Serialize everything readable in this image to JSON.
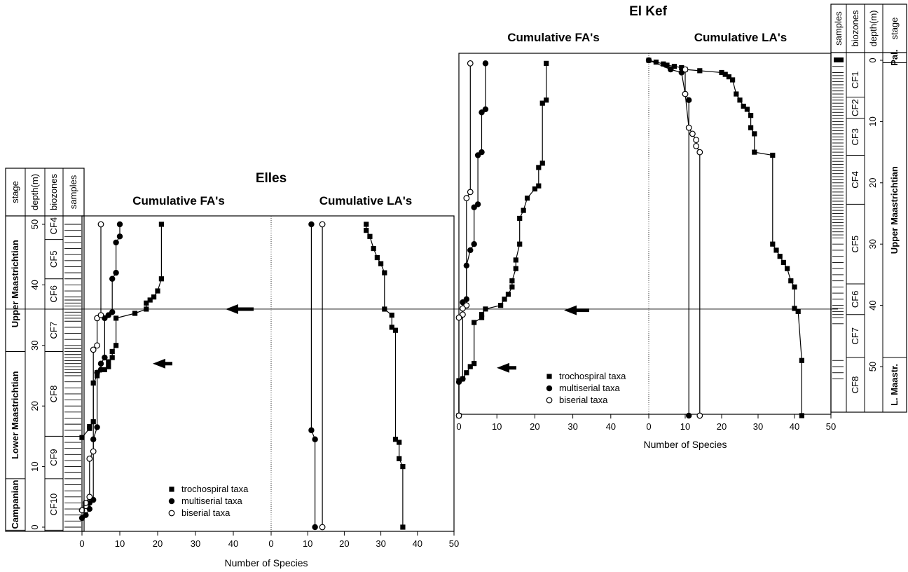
{
  "chart_data": [
    {
      "type": "scatter",
      "section": "Elles",
      "panels": [
        "Cumulative FA's",
        "Cumulative LA's"
      ],
      "xlabel": "Number of Species",
      "xlim": [
        0,
        50
      ],
      "xticks": [
        0,
        10,
        20,
        30,
        40,
        50
      ],
      "depth_label": "depth(m)",
      "depth_ticks": [
        0,
        10,
        20,
        30,
        40,
        50
      ],
      "boundary_depth": 36,
      "arrow_depths": [
        36,
        27
      ],
      "legend": [
        "trochospiral taxa",
        "multiserial taxa",
        "biserial taxa"
      ],
      "columns": [
        "stage",
        "depth(m)",
        "biozones",
        "samples"
      ],
      "stages": [
        {
          "label": "Upper Maastrichtian",
          "from": 29,
          "to": 52
        },
        {
          "label": "Lower Maastrichtian",
          "from": 8,
          "to": 29
        },
        {
          "label": "Campanian",
          "from": -0.5,
          "to": 8
        }
      ],
      "biozones": [
        {
          "label": "CF4",
          "from": 47.5,
          "to": 52
        },
        {
          "label": "CF5",
          "from": 41,
          "to": 47.5
        },
        {
          "label": "CF6",
          "from": 36,
          "to": 41
        },
        {
          "label": "CF7",
          "from": 29,
          "to": 36
        },
        {
          "label": "CF8",
          "from": 15,
          "to": 29
        },
        {
          "label": "CF9",
          "from": 8,
          "to": 15
        },
        {
          "label": "CF10",
          "from": -0.5,
          "to": 8
        }
      ],
      "samples": [
        0,
        1,
        2,
        3,
        4,
        5,
        6,
        7,
        8,
        9,
        10,
        11,
        12,
        13,
        14,
        15,
        16,
        17,
        18,
        19,
        20,
        21,
        22,
        23,
        24,
        25,
        25.5,
        26,
        26.5,
        27,
        27.5,
        28,
        28.5,
        29,
        29.5,
        30,
        31,
        32,
        33,
        34,
        34.5,
        35,
        35.5,
        36,
        36.5,
        37,
        37.5,
        38,
        39,
        40,
        41,
        42,
        43,
        44,
        45,
        46,
        47,
        48,
        49,
        50
      ],
      "fa": {
        "trochospiral": [
          [
            14.8,
            0
          ],
          [
            16.3,
            2
          ],
          [
            16.6,
            2
          ],
          [
            17.4,
            3
          ],
          [
            23.8,
            3
          ],
          [
            25,
            4
          ],
          [
            25.5,
            4
          ],
          [
            26,
            6
          ],
          [
            26.5,
            7
          ],
          [
            27.3,
            7
          ],
          [
            28,
            8
          ],
          [
            29,
            8
          ],
          [
            30,
            9
          ],
          [
            34.5,
            9
          ],
          [
            35.3,
            14
          ],
          [
            36,
            17
          ],
          [
            37,
            17
          ],
          [
            37.5,
            18
          ],
          [
            38,
            19
          ],
          [
            39,
            20
          ],
          [
            41,
            21
          ],
          [
            50,
            21
          ]
        ],
        "multiserial": [
          [
            1.5,
            0
          ],
          [
            2,
            1
          ],
          [
            3,
            2
          ],
          [
            4,
            2
          ],
          [
            4.5,
            3
          ],
          [
            14.5,
            3
          ],
          [
            16.5,
            4
          ],
          [
            25.5,
            4
          ],
          [
            26,
            5
          ],
          [
            27,
            5
          ],
          [
            28,
            6
          ],
          [
            34.5,
            6
          ],
          [
            35,
            7
          ],
          [
            35.5,
            8
          ],
          [
            41,
            8
          ],
          [
            42,
            9
          ],
          [
            47,
            9
          ],
          [
            48,
            10
          ],
          [
            50,
            10
          ]
        ],
        "biserial": [
          [
            2.8,
            0
          ],
          [
            3.5,
            1
          ],
          [
            4,
            1
          ],
          [
            5,
            2
          ],
          [
            11.3,
            2
          ],
          [
            12.5,
            3
          ],
          [
            29.3,
            3
          ],
          [
            30,
            4
          ],
          [
            34.5,
            4
          ],
          [
            35,
            5
          ],
          [
            50,
            5
          ]
        ]
      },
      "la": {
        "trochospiral": [
          [
            0,
            36
          ],
          [
            10,
            36
          ],
          [
            11.3,
            35
          ],
          [
            14,
            35
          ],
          [
            14.5,
            34
          ],
          [
            32.5,
            34
          ],
          [
            33,
            33
          ],
          [
            35,
            33
          ],
          [
            36,
            31
          ],
          [
            42,
            31
          ],
          [
            43.5,
            30
          ],
          [
            44.5,
            29
          ],
          [
            46,
            28
          ],
          [
            48,
            27
          ],
          [
            49,
            26
          ],
          [
            50,
            26
          ]
        ],
        "multiserial": [
          [
            0,
            12
          ],
          [
            14.5,
            12
          ],
          [
            16,
            11
          ],
          [
            50,
            11
          ]
        ],
        "biserial": [
          [
            0,
            14
          ],
          [
            50,
            14
          ]
        ]
      }
    },
    {
      "type": "scatter",
      "section": "El Kef",
      "panels": [
        "Cumulative FA's",
        "Cumulative LA's"
      ],
      "xlabel": "Number of Species",
      "xlim": [
        0,
        50
      ],
      "xticks": [
        0,
        10,
        20,
        30,
        40,
        50
      ],
      "depth_label": "depth(m)",
      "depth_ticks": [
        0,
        10,
        20,
        30,
        40,
        50
      ],
      "boundary_depth": 40.5,
      "arrow_depths": [
        40.8,
        50.2
      ],
      "legend": [
        "trochospiral taxa",
        "multiserial taxa",
        "biserial taxa"
      ],
      "columns": [
        "samples",
        "biozones",
        "depth(m)",
        "stage"
      ],
      "stages": [
        {
          "label": "Pal.",
          "from": -1.3,
          "to": 0.4
        },
        {
          "label": "Upper Maastrichtian",
          "from": 0.4,
          "to": 48.5
        },
        {
          "label": "L. Maastr.",
          "from": 48.5,
          "to": 58
        }
      ],
      "biozones": [
        {
          "label": "CF1",
          "from": 0.4,
          "to": 6
        },
        {
          "label": "CF2",
          "from": 6,
          "to": 9.5
        },
        {
          "label": "CF3",
          "from": 9.5,
          "to": 15.5
        },
        {
          "label": "CF4",
          "from": 15.5,
          "to": 23.5
        },
        {
          "label": "CF5",
          "from": 23.5,
          "to": 36.5
        },
        {
          "label": "CF6",
          "from": 36.5,
          "to": 41.5
        },
        {
          "label": "CF7",
          "from": 41.5,
          "to": 48.5
        },
        {
          "label": "CF8",
          "from": 48.5,
          "to": 58
        }
      ],
      "samples": [
        1,
        2,
        2.5,
        3,
        3.5,
        4,
        4.5,
        5,
        5.5,
        6,
        6.5,
        7,
        7.5,
        8,
        8.5,
        9,
        9.5,
        10,
        10.5,
        11,
        11.5,
        12,
        12.5,
        13,
        13.5,
        14,
        14.5,
        15,
        15.5,
        16,
        16.5,
        17,
        17.5,
        18,
        18.5,
        19,
        19.5,
        20,
        20.5,
        21,
        21.5,
        22,
        22.5,
        23,
        23.5,
        24,
        24.5,
        25,
        25.5,
        26,
        26.5,
        27,
        27.5,
        28,
        28.5,
        29,
        30,
        31,
        32,
        33,
        34,
        35,
        36,
        37,
        38,
        39,
        40,
        40.5,
        41,
        41.5,
        42,
        43,
        49,
        50,
        51,
        52
      ],
      "fa": {
        "trochospiral": [
          [
            0.5,
            23
          ],
          [
            6.5,
            23
          ],
          [
            7,
            22
          ],
          [
            16.8,
            22
          ],
          [
            17.5,
            21
          ],
          [
            20.5,
            21
          ],
          [
            21,
            20
          ],
          [
            22.5,
            18
          ],
          [
            24.5,
            17
          ],
          [
            25.8,
            16
          ],
          [
            30,
            16
          ],
          [
            32.6,
            15
          ],
          [
            34,
            15
          ],
          [
            36,
            14
          ],
          [
            37,
            14
          ],
          [
            38.2,
            13
          ],
          [
            39,
            12
          ],
          [
            40,
            11
          ],
          [
            40.6,
            7
          ],
          [
            41.5,
            6
          ],
          [
            42,
            6
          ],
          [
            42.8,
            4
          ],
          [
            49.5,
            4
          ],
          [
            50,
            3
          ],
          [
            51,
            2
          ],
          [
            52,
            1
          ],
          [
            52.3,
            0
          ],
          [
            58,
            0
          ]
        ],
        "multiserial": [
          [
            0.5,
            7
          ],
          [
            8,
            7
          ],
          [
            8.5,
            6
          ],
          [
            15,
            6
          ],
          [
            15.5,
            5
          ],
          [
            23.5,
            5
          ],
          [
            24,
            4
          ],
          [
            30,
            4
          ],
          [
            31,
            3
          ],
          [
            33.5,
            2
          ],
          [
            39,
            2
          ],
          [
            39.5,
            1
          ],
          [
            52,
            1
          ],
          [
            52.5,
            0
          ],
          [
            58,
            0
          ]
        ],
        "biserial": [
          [
            0.5,
            3
          ],
          [
            21.5,
            3
          ],
          [
            22.5,
            2
          ],
          [
            40,
            2
          ],
          [
            40.5,
            1
          ],
          [
            41.5,
            1
          ],
          [
            42,
            0
          ],
          [
            58,
            0
          ]
        ]
      },
      "la": {
        "trochospiral": [
          [
            0,
            0
          ],
          [
            0.3,
            2
          ],
          [
            0.6,
            4
          ],
          [
            0.8,
            5
          ],
          [
            1,
            7
          ],
          [
            1.2,
            9
          ],
          [
            1.5,
            10
          ],
          [
            1.7,
            14
          ],
          [
            2,
            20
          ],
          [
            2.3,
            21
          ],
          [
            2.7,
            22
          ],
          [
            3.2,
            23
          ],
          [
            5.5,
            24
          ],
          [
            6.5,
            25
          ],
          [
            7.5,
            26
          ],
          [
            8,
            27
          ],
          [
            9,
            28
          ],
          [
            11,
            28
          ],
          [
            12,
            29
          ],
          [
            15,
            29
          ],
          [
            15.5,
            34
          ],
          [
            30,
            34
          ],
          [
            31,
            35
          ],
          [
            32,
            36
          ],
          [
            33,
            37
          ],
          [
            34,
            38
          ],
          [
            36,
            39
          ],
          [
            37,
            40
          ],
          [
            40.5,
            40
          ],
          [
            41,
            41
          ],
          [
            49,
            42
          ],
          [
            58,
            42
          ]
        ],
        "multiserial": [
          [
            0,
            0
          ],
          [
            1.5,
            6
          ],
          [
            2,
            9
          ],
          [
            5.5,
            10
          ],
          [
            6.5,
            11
          ],
          [
            58,
            11
          ]
        ],
        "biserial": [
          [
            1.5,
            10
          ],
          [
            5.5,
            10
          ],
          [
            11,
            11
          ],
          [
            12,
            12
          ],
          [
            13,
            13
          ],
          [
            14,
            13
          ],
          [
            15,
            14
          ],
          [
            58,
            14
          ]
        ]
      }
    }
  ]
}
